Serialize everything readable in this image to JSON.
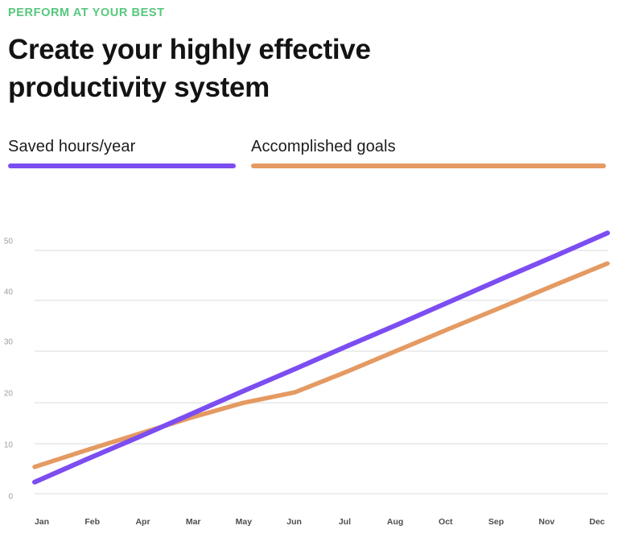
{
  "header": {
    "eyebrow": "PERFORM AT YOUR BEST",
    "title_line1": "Create your highly effective",
    "title_line2": "productivity system"
  },
  "legend": {
    "items": [
      {
        "label": "Saved hours/year",
        "color": "#7c4df1"
      },
      {
        "label": "Accomplished goals",
        "color": "#e49a62"
      }
    ]
  },
  "colors": {
    "accent_green": "#56c87c",
    "heading": "#131313",
    "purple_line": "#7c4df1",
    "orange_line": "#e49a62",
    "gridline": "#ededed",
    "y_tick_label": "#9e9e9e",
    "x_tick_label": "#4d4d4d",
    "background": "#ffffff"
  },
  "chart_data": {
    "type": "line",
    "categories": [
      "Jan",
      "Feb",
      "Apr",
      "Mar",
      "May",
      "Jun",
      "Jul",
      "Aug",
      "Oct",
      "Sep",
      "Nov",
      "Dec"
    ],
    "series": [
      {
        "name": "Saved hours/year",
        "color": "#7c4df1",
        "values": [
          2.6,
          7.1,
          11.5,
          16.0,
          20.5,
          24.9,
          29.4,
          33.8,
          38.3,
          42.8,
          47.2,
          51.7
        ]
      },
      {
        "name": "Accomplished goals",
        "color": "#e49a62",
        "values": [
          5.6,
          8.9,
          12.1,
          15.3,
          18.2,
          20.3,
          24.4,
          28.7,
          33.0,
          37.2,
          41.5,
          45.7
        ]
      }
    ],
    "y_ticks": [
      50,
      40,
      30,
      20,
      10,
      0
    ],
    "ylim": [
      0,
      52
    ],
    "xlabel": "",
    "ylabel": "",
    "grid": true,
    "legend_position": "top"
  }
}
